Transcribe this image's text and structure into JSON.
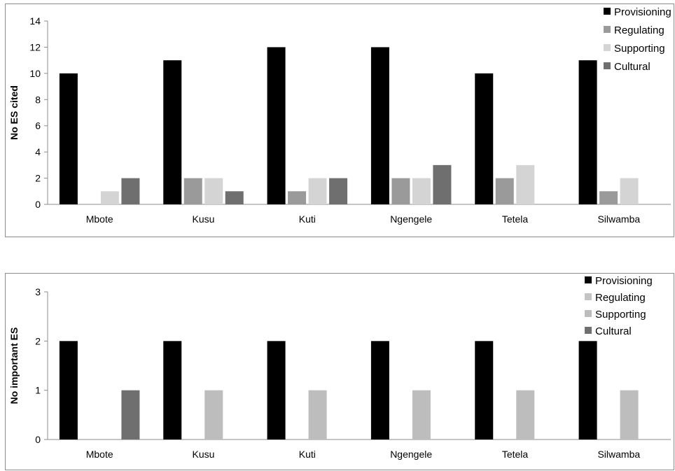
{
  "chart_data": [
    {
      "type": "bar",
      "ylabel": "No ES cited",
      "ylim": [
        0,
        14
      ],
      "yticks": [
        0,
        2,
        4,
        6,
        8,
        10,
        12,
        14
      ],
      "grid": false,
      "legend": "top-right",
      "categories": [
        "Mbote",
        "Kusu",
        "Kuti",
        "Ngengele",
        "Tetela",
        "Silwamba"
      ],
      "series": [
        {
          "name": "Provisioning",
          "color": "#000000",
          "values": [
            10,
            11,
            12,
            12,
            10,
            11
          ]
        },
        {
          "name": "Regulating",
          "color": "#9a9a9a",
          "values": [
            0,
            2,
            1,
            2,
            2,
            1
          ]
        },
        {
          "name": "Supporting",
          "color": "#d4d4d4",
          "values": [
            1,
            2,
            2,
            2,
            3,
            2
          ]
        },
        {
          "name": "Cultural",
          "color": "#6f6f6f",
          "values": [
            2,
            1,
            2,
            3,
            0,
            0
          ]
        }
      ]
    },
    {
      "type": "bar",
      "ylabel": "No important ES",
      "ylim": [
        0,
        3
      ],
      "yticks": [
        0,
        1,
        2,
        3
      ],
      "grid": false,
      "legend": "top-right",
      "categories": [
        "Mbote",
        "Kusu",
        "Kuti",
        "Ngengele",
        "Tetela",
        "Silwamba"
      ],
      "series": [
        {
          "name": "Provisioning",
          "color": "#000000",
          "values": [
            2,
            2,
            2,
            2,
            2,
            2
          ]
        },
        {
          "name": "Regulating",
          "color": "#c4c4c4",
          "values": [
            0,
            0,
            0,
            0,
            0,
            0
          ]
        },
        {
          "name": "Supporting",
          "color": "#bdbdbd",
          "values": [
            0,
            1,
            1,
            1,
            1,
            1
          ]
        },
        {
          "name": "Cultural",
          "color": "#6f6f6f",
          "values": [
            1,
            0,
            0,
            0,
            0,
            0
          ]
        }
      ]
    }
  ]
}
